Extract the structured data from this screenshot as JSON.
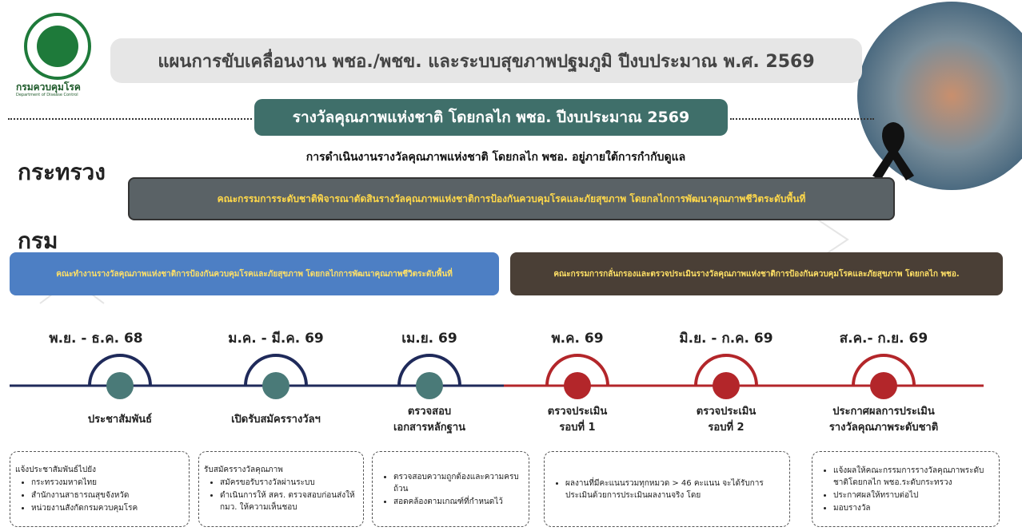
{
  "header": {
    "logo_text": "กรมควบคุมโรค",
    "logo_subtext": "Department of Disease Control",
    "title": "แผนการขับเคลื่อนงาน พชอ./พชข. และระบบสุขภาพปฐมภูมิ ปีงบประมาณ พ.ศ. 2569",
    "subtitle": "รางวัลคุณภาพแห่งชาติ โดยกลไก พชอ.  ปีงบประมาณ 2569",
    "caption": "การดำเนินงานรางวัลคุณภาพแห่งชาติ โดยกลไก พชอ. อยู่ภายใต้การกำกับดูแล"
  },
  "ministry": {
    "label": "กระทรวง",
    "committee": "คณะกรรมการระดับชาติพิจารณาตัดสินรางวัลคุณภาพแห่งชาติการป้องกันควบคุมโรคและภัยสุขภาพ โดยกลไกการพัฒนาคุณภาพชีวิตระดับพื้นที่"
  },
  "department": {
    "label": "กรม",
    "left_committee": "คณะทำงานรางวัลคุณภาพแห่งชาติการป้องกันควบคุมโรคและภัยสุขภาพ โดยกลไกการพัฒนาคุณภาพชีวิตระดับพื้นที่",
    "right_committee": "คณะกรรมการกลั่นกรองและตรวจประเมินรางวัลคุณภาพแห่งชาติการป้องกันควบคุมโรคและภัยสุขภาพ โดยกลไก พชอ."
  },
  "timeline": [
    {
      "period": "พ.ย. - ธ.ค. 68",
      "title": "ประชาสัมพันธ์",
      "detail_heading": "แจ้งประชาสัมพันธ์ไปยัง",
      "details": [
        "กระทรวงมหาดไทย",
        "สำนักงานสาธารณสุขจังหวัด",
        "หน่วยงานสังกัดกรมควบคุมโรค"
      ]
    },
    {
      "period": "ม.ค. - มี.ค. 69",
      "title": "เปิดรับสมัครรางวัลฯ",
      "detail_heading": "รับสมัครรางวัลคุณภาพ",
      "details": [
        "สมัครขอรับรางวัลผ่านระบบ",
        "ดำเนินการให้ สคร. ตรวจสอบก่อนส่งให้ กมว. ให้ความเห็นชอบ"
      ]
    },
    {
      "period": "เม.ย. 69",
      "title": "ตรวจสอบ\nเอกสารหลักฐาน",
      "details": [
        "ตรวจสอบความถูกต้องและความครบถ้วน",
        "สอดคล้องตามเกณฑ์ที่กำหนดไว้"
      ]
    },
    {
      "period": "พ.ค. 69",
      "title": "ตรวจประเมิน\nรอบที่  1",
      "details": [
        "ผลงานที่มีคะแนนรวมทุกหมวด > 46 คะแนน จะได้รับการประเมินด้วยการประเมินผลงานจริง  โดย"
      ]
    },
    {
      "period": "มิ.ย. - ก.ค. 69",
      "title": "ตรวจประเมิน\nรอบที่ 2"
    },
    {
      "period": "ส.ค.- ก.ย. 69",
      "title": "ประกาศผลการประเมิน\nรางวัลคุณภาพระดับชาติ",
      "details": [
        "แจ้งผลให้คณะกรรมการรางวัลคุณภาพระดับชาติโดยกลไก พชอ.ระดับกระทรวง",
        "ประกาศผลให้ทราบต่อไป",
        "มอบรางวัล"
      ]
    }
  ]
}
